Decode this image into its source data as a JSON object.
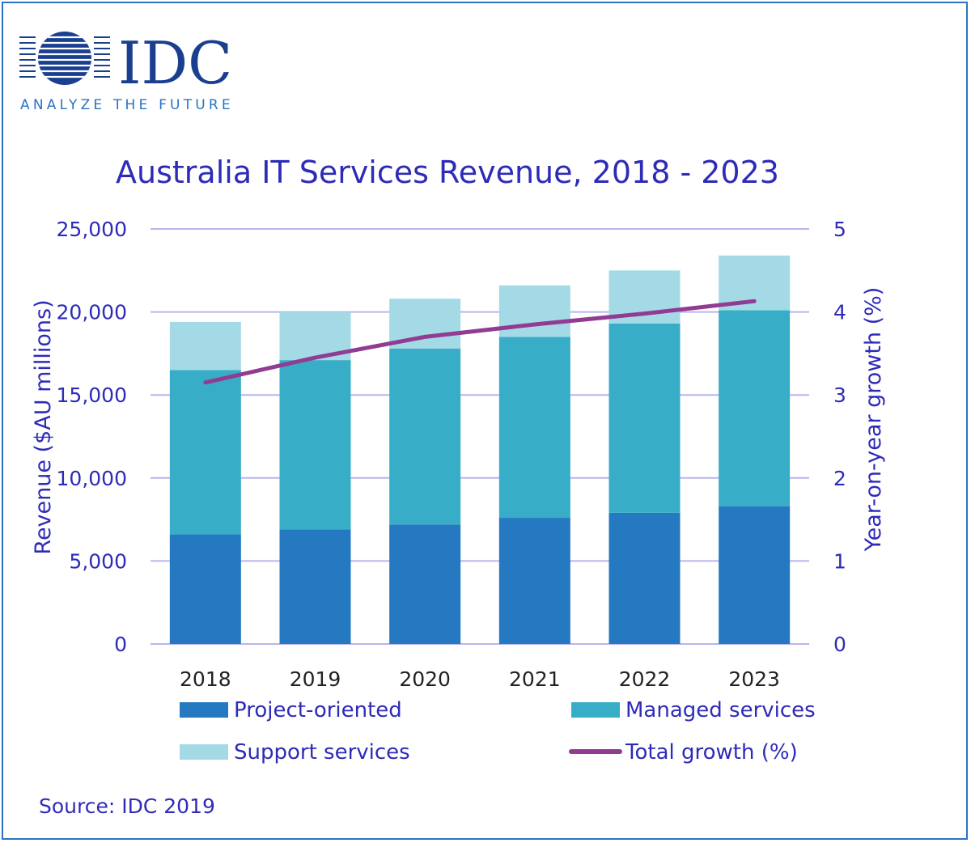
{
  "logo": {
    "wordmark": "IDC",
    "tagline": "ANALYZE THE FUTURE"
  },
  "source": "Source: IDC 2019",
  "colors": {
    "project": "#2479c1",
    "managed": "#37adc7",
    "support": "#a3dae6",
    "growth": "#923b93",
    "text": "#2e2bb8",
    "grid": "#b9b5ee",
    "frame": "#2a73c4",
    "logo": "#1b3f8f"
  },
  "chart_data": {
    "type": "bar",
    "stacked": true,
    "title": "Australia IT Services Revenue, 2018 - 2023",
    "xlabel": "",
    "ylabel": "Revenue ($AU millions)",
    "y2label": "Year-on-year growth (%)",
    "categories": [
      "2018",
      "2019",
      "2020",
      "2021",
      "2022",
      "2023"
    ],
    "ylim": [
      0,
      25000
    ],
    "yticks": [
      "0",
      "5,000",
      "10,000",
      "15,000",
      "20,000",
      "25,000"
    ],
    "y2lim": [
      0,
      5
    ],
    "y2ticks": [
      "0",
      "1",
      "2",
      "3",
      "4",
      "5"
    ],
    "grid": true,
    "legend_position": "bottom",
    "series": [
      {
        "name": "Project-oriented",
        "type": "bar",
        "axis": "left",
        "values": [
          6600,
          6900,
          7200,
          7600,
          7900,
          8300
        ]
      },
      {
        "name": "Managed services",
        "type": "bar",
        "axis": "left",
        "values": [
          9900,
          10200,
          10600,
          10900,
          11400,
          11800
        ]
      },
      {
        "name": "Support services",
        "type": "bar",
        "axis": "left",
        "values": [
          2900,
          2900,
          3000,
          3100,
          3200,
          3300
        ]
      },
      {
        "name": "Total growth (%)",
        "type": "line",
        "axis": "right",
        "values": [
          3.15,
          3.45,
          3.7,
          3.85,
          3.98,
          4.13
        ]
      }
    ]
  }
}
